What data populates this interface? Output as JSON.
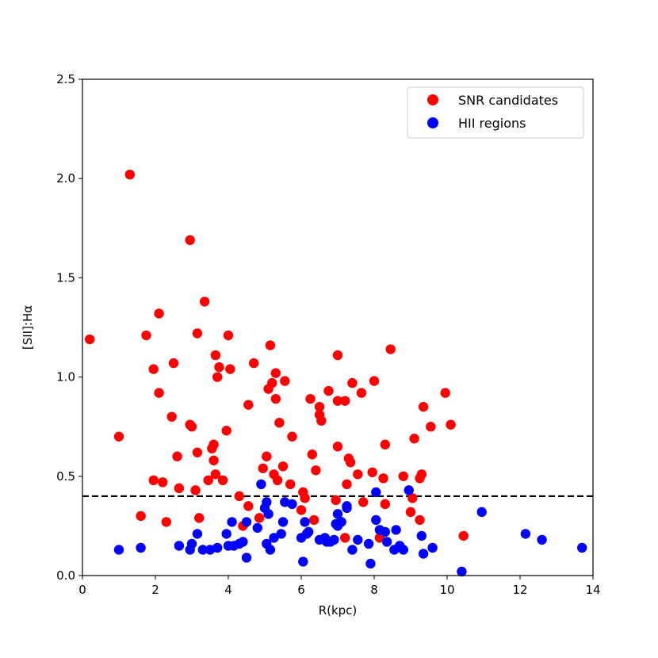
{
  "chart_data": {
    "type": "scatter",
    "title": "",
    "xlabel": "R(kpc)",
    "ylabel": "[SII]:Hα",
    "xlim": [
      0,
      14
    ],
    "ylim": [
      0,
      2.5
    ],
    "xticks": [
      0,
      2,
      4,
      6,
      8,
      10,
      12,
      14
    ],
    "yticks": [
      0.0,
      0.5,
      1.0,
      1.5,
      2.0,
      2.5
    ],
    "xtick_labels": [
      "0",
      "2",
      "4",
      "6",
      "8",
      "10",
      "12",
      "14"
    ],
    "ytick_labels": [
      "0.0",
      "0.5",
      "1.0",
      "1.5",
      "2.0",
      "2.5"
    ],
    "grid": false,
    "legend_position": "top-right",
    "reference_line": {
      "y": 0.4,
      "style": "dashed",
      "color": "#000000"
    },
    "series": [
      {
        "name": "SNR candidates",
        "color": "#ff0000",
        "points": [
          [
            0.2,
            1.19
          ],
          [
            1.0,
            0.7
          ],
          [
            1.3,
            2.02
          ],
          [
            1.6,
            0.3
          ],
          [
            1.75,
            1.21
          ],
          [
            1.95,
            1.04
          ],
          [
            1.95,
            0.48
          ],
          [
            2.1,
            1.32
          ],
          [
            2.1,
            0.92
          ],
          [
            2.2,
            0.47
          ],
          [
            2.3,
            0.27
          ],
          [
            2.45,
            0.8
          ],
          [
            2.5,
            1.07
          ],
          [
            2.6,
            0.6
          ],
          [
            2.65,
            0.44
          ],
          [
            2.95,
            1.69
          ],
          [
            2.95,
            0.76
          ],
          [
            3.0,
            0.75
          ],
          [
            3.1,
            0.43
          ],
          [
            3.15,
            1.22
          ],
          [
            3.15,
            0.62
          ],
          [
            3.2,
            0.29
          ],
          [
            3.35,
            1.38
          ],
          [
            3.45,
            0.48
          ],
          [
            3.55,
            0.64
          ],
          [
            3.6,
            0.66
          ],
          [
            3.6,
            0.58
          ],
          [
            3.65,
            1.11
          ],
          [
            3.65,
            0.51
          ],
          [
            3.7,
            1.0
          ],
          [
            3.75,
            1.05
          ],
          [
            3.85,
            0.48
          ],
          [
            3.95,
            0.73
          ],
          [
            4.0,
            1.21
          ],
          [
            4.05,
            1.04
          ],
          [
            4.3,
            0.4
          ],
          [
            4.4,
            0.25
          ],
          [
            4.55,
            0.35
          ],
          [
            4.55,
            0.86
          ],
          [
            4.7,
            1.07
          ],
          [
            4.85,
            0.29
          ],
          [
            4.95,
            0.54
          ],
          [
            5.05,
            0.6
          ],
          [
            5.1,
            0.94
          ],
          [
            5.15,
            1.16
          ],
          [
            5.2,
            0.97
          ],
          [
            5.25,
            0.51
          ],
          [
            5.3,
            1.02
          ],
          [
            5.3,
            0.89
          ],
          [
            5.35,
            0.48
          ],
          [
            5.4,
            0.77
          ],
          [
            5.5,
            0.55
          ],
          [
            5.55,
            0.98
          ],
          [
            5.7,
            0.46
          ],
          [
            5.75,
            0.7
          ],
          [
            6.0,
            0.33
          ],
          [
            6.05,
            0.42
          ],
          [
            6.1,
            0.39
          ],
          [
            6.25,
            0.89
          ],
          [
            6.3,
            0.61
          ],
          [
            6.35,
            0.28
          ],
          [
            6.4,
            0.53
          ],
          [
            6.5,
            0.85
          ],
          [
            6.5,
            0.81
          ],
          [
            6.55,
            0.78
          ],
          [
            6.75,
            0.93
          ],
          [
            6.95,
            0.38
          ],
          [
            7.0,
            1.11
          ],
          [
            7.0,
            0.88
          ],
          [
            7.0,
            0.65
          ],
          [
            7.1,
            0.27
          ],
          [
            7.2,
            0.88
          ],
          [
            7.2,
            0.19
          ],
          [
            7.25,
            0.46
          ],
          [
            7.3,
            0.59
          ],
          [
            7.35,
            0.57
          ],
          [
            7.4,
            0.97
          ],
          [
            7.55,
            0.51
          ],
          [
            7.65,
            0.92
          ],
          [
            7.7,
            0.37
          ],
          [
            7.95,
            0.52
          ],
          [
            8.0,
            0.98
          ],
          [
            8.15,
            0.19
          ],
          [
            8.25,
            0.49
          ],
          [
            8.3,
            0.36
          ],
          [
            8.3,
            0.66
          ],
          [
            8.45,
            1.14
          ],
          [
            8.8,
            0.5
          ],
          [
            9.0,
            0.32
          ],
          [
            9.05,
            0.39
          ],
          [
            9.1,
            0.69
          ],
          [
            9.25,
            0.49
          ],
          [
            9.25,
            0.28
          ],
          [
            9.3,
            0.51
          ],
          [
            9.35,
            0.85
          ],
          [
            9.55,
            0.75
          ],
          [
            9.95,
            0.92
          ],
          [
            10.1,
            0.76
          ],
          [
            10.45,
            0.2
          ]
        ]
      },
      {
        "name": "HII regions",
        "color": "#0000ff",
        "points": [
          [
            1.0,
            0.13
          ],
          [
            1.6,
            0.14
          ],
          [
            2.65,
            0.15
          ],
          [
            2.95,
            0.13
          ],
          [
            3.0,
            0.16
          ],
          [
            3.15,
            0.21
          ],
          [
            3.3,
            0.13
          ],
          [
            3.5,
            0.13
          ],
          [
            3.7,
            0.14
          ],
          [
            3.95,
            0.21
          ],
          [
            4.0,
            0.15
          ],
          [
            4.1,
            0.27
          ],
          [
            4.15,
            0.15
          ],
          [
            4.3,
            0.16
          ],
          [
            4.4,
            0.17
          ],
          [
            4.5,
            0.09
          ],
          [
            4.5,
            0.27
          ],
          [
            4.8,
            0.24
          ],
          [
            4.9,
            0.46
          ],
          [
            5.0,
            0.34
          ],
          [
            5.05,
            0.37
          ],
          [
            5.05,
            0.16
          ],
          [
            5.1,
            0.31
          ],
          [
            5.15,
            0.13
          ],
          [
            5.25,
            0.19
          ],
          [
            5.45,
            0.21
          ],
          [
            5.5,
            0.27
          ],
          [
            5.55,
            0.37
          ],
          [
            5.75,
            0.36
          ],
          [
            6.0,
            0.19
          ],
          [
            6.05,
            0.07
          ],
          [
            6.1,
            0.27
          ],
          [
            6.15,
            0.21
          ],
          [
            6.2,
            0.22
          ],
          [
            6.5,
            0.18
          ],
          [
            6.65,
            0.19
          ],
          [
            6.7,
            0.17
          ],
          [
            6.8,
            0.17
          ],
          [
            6.9,
            0.18
          ],
          [
            6.95,
            0.26
          ],
          [
            7.0,
            0.31
          ],
          [
            7.0,
            0.25
          ],
          [
            7.1,
            0.27
          ],
          [
            7.25,
            0.35
          ],
          [
            7.25,
            0.34
          ],
          [
            7.4,
            0.13
          ],
          [
            7.55,
            0.18
          ],
          [
            7.85,
            0.16
          ],
          [
            7.9,
            0.06
          ],
          [
            8.05,
            0.42
          ],
          [
            8.05,
            0.28
          ],
          [
            8.15,
            0.23
          ],
          [
            8.3,
            0.22
          ],
          [
            8.35,
            0.17
          ],
          [
            8.55,
            0.13
          ],
          [
            8.6,
            0.23
          ],
          [
            8.7,
            0.15
          ],
          [
            8.8,
            0.13
          ],
          [
            8.95,
            0.43
          ],
          [
            9.3,
            0.2
          ],
          [
            9.35,
            0.11
          ],
          [
            9.6,
            0.14
          ],
          [
            10.4,
            0.02
          ],
          [
            10.95,
            0.32
          ],
          [
            12.15,
            0.21
          ],
          [
            12.6,
            0.18
          ],
          [
            13.7,
            0.14
          ]
        ]
      }
    ]
  }
}
